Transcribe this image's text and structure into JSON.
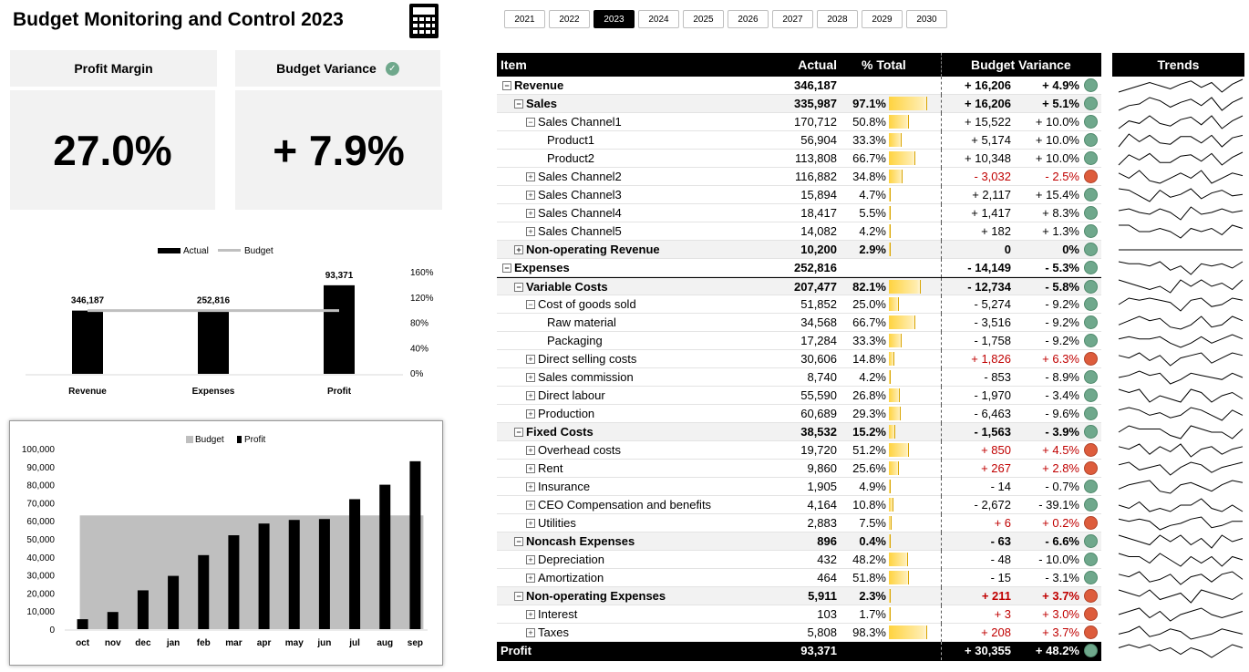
{
  "title": "Budget Monitoring and Control 2023",
  "icons": {
    "calculator": "calculator-icon",
    "check": "check-circle-icon"
  },
  "kpis": [
    {
      "label": "Profit Margin",
      "value": "27.0%"
    },
    {
      "label": "Budget Variance",
      "value": "+ 7.9%"
    }
  ],
  "years": [
    "2021",
    "2022",
    "2023",
    "2024",
    "2025",
    "2026",
    "2027",
    "2028",
    "2029",
    "2030"
  ],
  "selected_year": "2023",
  "colors": {
    "good": "#6fa88c",
    "bad": "#dd5c3c",
    "header": "#000000",
    "shade": "#f2f2f2",
    "bar": "#ffd33f",
    "budget_area": "#bfbfbf"
  },
  "table": {
    "headers": {
      "item": "Item",
      "actual": "Actual",
      "pct": "% Total",
      "variance": "Budget Variance",
      "trends": "Trends"
    },
    "rows": [
      {
        "label": "Revenue",
        "level": 0,
        "toggle": "minus",
        "actual": "346,187",
        "pct": "",
        "share": 0,
        "var": "+ 16,206",
        "vpct": "+ 4.9%",
        "status": "good",
        "bold": true,
        "shade": false,
        "top": false
      },
      {
        "label": "Sales",
        "level": 1,
        "toggle": "minus",
        "actual": "335,987",
        "pct": "97.1%",
        "share": 0.971,
        "var": "+ 16,206",
        "vpct": "+ 5.1%",
        "status": "good",
        "bold": true,
        "shade": true,
        "top": false
      },
      {
        "label": "Sales Channel1",
        "level": 2,
        "toggle": "minus",
        "actual": "170,712",
        "pct": "50.8%",
        "share": 0.508,
        "var": "+ 15,522",
        "vpct": "+ 10.0%",
        "status": "good",
        "bold": false,
        "shade": false,
        "top": false
      },
      {
        "label": "Product1",
        "level": 3,
        "toggle": "",
        "actual": "56,904",
        "pct": "33.3%",
        "share": 0.333,
        "var": "+ 5,174",
        "vpct": "+ 10.0%",
        "status": "good",
        "bold": false,
        "shade": false,
        "top": false
      },
      {
        "label": "Product2",
        "level": 3,
        "toggle": "",
        "actual": "113,808",
        "pct": "66.7%",
        "share": 0.667,
        "var": "+ 10,348",
        "vpct": "+ 10.0%",
        "status": "good",
        "bold": false,
        "shade": false,
        "top": false
      },
      {
        "label": "Sales Channel2",
        "level": 2,
        "toggle": "plus",
        "actual": "116,882",
        "pct": "34.8%",
        "share": 0.348,
        "var": "- 3,032",
        "vpct": "- 2.5%",
        "status": "bad",
        "bold": false,
        "shade": false,
        "top": false
      },
      {
        "label": "Sales Channel3",
        "level": 2,
        "toggle": "plus",
        "actual": "15,894",
        "pct": "4.7%",
        "share": 0.047,
        "var": "+ 2,117",
        "vpct": "+ 15.4%",
        "status": "good",
        "bold": false,
        "shade": false,
        "top": false
      },
      {
        "label": "Sales Channel4",
        "level": 2,
        "toggle": "plus",
        "actual": "18,417",
        "pct": "5.5%",
        "share": 0.055,
        "var": "+ 1,417",
        "vpct": "+ 8.3%",
        "status": "good",
        "bold": false,
        "shade": false,
        "top": false
      },
      {
        "label": "Sales Channel5",
        "level": 2,
        "toggle": "plus",
        "actual": "14,082",
        "pct": "4.2%",
        "share": 0.042,
        "var": "+ 182",
        "vpct": "+ 1.3%",
        "status": "good",
        "bold": false,
        "shade": false,
        "top": false
      },
      {
        "label": "Non-operating Revenue",
        "level": 1,
        "toggle": "plus",
        "actual": "10,200",
        "pct": "2.9%",
        "share": 0.029,
        "var": "0",
        "vpct": "0%",
        "status": "good",
        "bold": true,
        "shade": true,
        "top": false
      },
      {
        "label": "Expenses",
        "level": 0,
        "toggle": "minus",
        "actual": "252,816",
        "pct": "",
        "share": 0,
        "var": "- 14,149",
        "vpct": "- 5.3%",
        "status": "good",
        "bold": true,
        "shade": false,
        "top": false
      },
      {
        "label": "Variable Costs",
        "level": 1,
        "toggle": "minus",
        "actual": "207,477",
        "pct": "82.1%",
        "share": 0.821,
        "var": "- 12,734",
        "vpct": "- 5.8%",
        "status": "good",
        "bold": true,
        "shade": true,
        "top": true
      },
      {
        "label": "Cost of goods sold",
        "level": 2,
        "toggle": "minus",
        "actual": "51,852",
        "pct": "25.0%",
        "share": 0.25,
        "var": "- 5,274",
        "vpct": "- 9.2%",
        "status": "good",
        "bold": false,
        "shade": false,
        "top": false
      },
      {
        "label": "Raw material",
        "level": 3,
        "toggle": "",
        "actual": "34,568",
        "pct": "66.7%",
        "share": 0.667,
        "var": "- 3,516",
        "vpct": "- 9.2%",
        "status": "good",
        "bold": false,
        "shade": false,
        "top": false
      },
      {
        "label": "Packaging",
        "level": 3,
        "toggle": "",
        "actual": "17,284",
        "pct": "33.3%",
        "share": 0.333,
        "var": "- 1,758",
        "vpct": "- 9.2%",
        "status": "good",
        "bold": false,
        "shade": false,
        "top": false
      },
      {
        "label": "Direct selling costs",
        "level": 2,
        "toggle": "plus",
        "actual": "30,606",
        "pct": "14.8%",
        "share": 0.148,
        "var": "+ 1,826",
        "vpct": "+ 6.3%",
        "status": "bad",
        "bold": false,
        "shade": false,
        "top": false
      },
      {
        "label": "Sales commission",
        "level": 2,
        "toggle": "plus",
        "actual": "8,740",
        "pct": "4.2%",
        "share": 0.042,
        "var": "- 853",
        "vpct": "- 8.9%",
        "status": "good",
        "bold": false,
        "shade": false,
        "top": false
      },
      {
        "label": "Direct labour",
        "level": 2,
        "toggle": "plus",
        "actual": "55,590",
        "pct": "26.8%",
        "share": 0.268,
        "var": "- 1,970",
        "vpct": "- 3.4%",
        "status": "good",
        "bold": false,
        "shade": false,
        "top": false
      },
      {
        "label": "Production",
        "level": 2,
        "toggle": "plus",
        "actual": "60,689",
        "pct": "29.3%",
        "share": 0.293,
        "var": "- 6,463",
        "vpct": "- 9.6%",
        "status": "good",
        "bold": false,
        "shade": false,
        "top": false
      },
      {
        "label": "Fixed Costs",
        "level": 1,
        "toggle": "minus",
        "actual": "38,532",
        "pct": "15.2%",
        "share": 0.152,
        "var": "- 1,563",
        "vpct": "- 3.9%",
        "status": "good",
        "bold": true,
        "shade": true,
        "top": false
      },
      {
        "label": "Overhead costs",
        "level": 2,
        "toggle": "plus",
        "actual": "19,720",
        "pct": "51.2%",
        "share": 0.512,
        "var": "+ 850",
        "vpct": "+ 4.5%",
        "status": "bad",
        "bold": false,
        "shade": false,
        "top": false
      },
      {
        "label": "Rent",
        "level": 2,
        "toggle": "plus",
        "actual": "9,860",
        "pct": "25.6%",
        "share": 0.256,
        "var": "+ 267",
        "vpct": "+ 2.8%",
        "status": "bad",
        "bold": false,
        "shade": false,
        "top": false
      },
      {
        "label": "Insurance",
        "level": 2,
        "toggle": "plus",
        "actual": "1,905",
        "pct": "4.9%",
        "share": 0.049,
        "var": "- 14",
        "vpct": "- 0.7%",
        "status": "good",
        "bold": false,
        "shade": false,
        "top": false
      },
      {
        "label": "CEO Compensation and benefits",
        "level": 2,
        "toggle": "plus",
        "actual": "4,164",
        "pct": "10.8%",
        "share": 0.108,
        "var": "- 2,672",
        "vpct": "- 39.1%",
        "status": "good",
        "bold": false,
        "shade": false,
        "top": false
      },
      {
        "label": "Utilities",
        "level": 2,
        "toggle": "plus",
        "actual": "2,883",
        "pct": "7.5%",
        "share": 0.075,
        "var": "+ 6",
        "vpct": "+ 0.2%",
        "status": "bad",
        "bold": false,
        "shade": false,
        "top": false
      },
      {
        "label": "Noncash Expenses",
        "level": 1,
        "toggle": "minus",
        "actual": "896",
        "pct": "0.4%",
        "share": 0.004,
        "var": "- 63",
        "vpct": "- 6.6%",
        "status": "good",
        "bold": true,
        "shade": true,
        "top": false
      },
      {
        "label": "Depreciation",
        "level": 2,
        "toggle": "plus",
        "actual": "432",
        "pct": "48.2%",
        "share": 0.482,
        "var": "- 48",
        "vpct": "- 10.0%",
        "status": "good",
        "bold": false,
        "shade": false,
        "top": false
      },
      {
        "label": "Amortization",
        "level": 2,
        "toggle": "plus",
        "actual": "464",
        "pct": "51.8%",
        "share": 0.518,
        "var": "- 15",
        "vpct": "- 3.1%",
        "status": "good",
        "bold": false,
        "shade": false,
        "top": false
      },
      {
        "label": "Non-operating Expenses",
        "level": 1,
        "toggle": "minus",
        "actual": "5,911",
        "pct": "2.3%",
        "share": 0.023,
        "var": "+ 211",
        "vpct": "+ 3.7%",
        "status": "bad",
        "bold": true,
        "shade": true,
        "top": false
      },
      {
        "label": "Interest",
        "level": 2,
        "toggle": "plus",
        "actual": "103",
        "pct": "1.7%",
        "share": 0.017,
        "var": "+ 3",
        "vpct": "+ 3.0%",
        "status": "bad",
        "bold": false,
        "shade": false,
        "top": false
      },
      {
        "label": "Taxes",
        "level": 2,
        "toggle": "plus",
        "actual": "5,808",
        "pct": "98.3%",
        "share": 0.983,
        "var": "+ 208",
        "vpct": "+ 3.7%",
        "status": "bad",
        "bold": false,
        "shade": false,
        "top": false
      }
    ],
    "profit": {
      "label": "Profit",
      "actual": "93,371",
      "var": "+ 30,355",
      "vpct": "+ 48.2%",
      "status": "good"
    }
  },
  "chart_data": [
    {
      "type": "bar",
      "title": "",
      "legend": [
        "Actual",
        "Budget"
      ],
      "legend_position": "top",
      "categories": [
        "Revenue",
        "Expenses",
        "Profit"
      ],
      "values": [
        346187,
        252816,
        93371
      ],
      "data_labels": [
        "346,187",
        "252,816",
        "93,371"
      ],
      "achievement_pct": [
        100,
        100,
        140
      ],
      "budget_line_pct": 100,
      "secondary_axis_ticks": [
        "160%",
        "120%",
        "80%",
        "40%",
        "0%"
      ],
      "secondary_ylim": [
        0,
        160
      ]
    },
    {
      "type": "bar",
      "title": "",
      "legend": [
        "Budget",
        "Profit"
      ],
      "legend_position": "top",
      "categories": [
        "oct",
        "nov",
        "dec",
        "jan",
        "feb",
        "mar",
        "apr",
        "may",
        "jun",
        "jul",
        "aug",
        "sep"
      ],
      "series": [
        {
          "name": "Profit",
          "values": [
            5500,
            9500,
            21500,
            29500,
            41000,
            52000,
            58500,
            60500,
            61000,
            72000,
            80000,
            93000
          ]
        },
        {
          "name": "Budget",
          "values": [
            63000,
            63000,
            63000,
            63000,
            63000,
            63000,
            63000,
            63000,
            63000,
            63000,
            63000,
            63000
          ]
        }
      ],
      "y_ticks": [
        "100,000",
        "90,000",
        "80,000",
        "70,000",
        "60,000",
        "50,000",
        "40,000",
        "30,000",
        "20,000",
        "10,000",
        "0"
      ],
      "ylim": [
        0,
        100000
      ],
      "grid": false
    }
  ],
  "trends": [
    [
      4,
      6,
      8,
      10,
      8,
      6,
      9,
      11,
      7,
      10,
      4,
      9,
      12
    ],
    [
      4,
      7,
      8,
      12,
      10,
      6,
      9,
      11,
      7,
      12,
      4,
      9,
      12
    ],
    [
      4,
      10,
      8,
      14,
      8,
      6,
      11,
      13,
      7,
      14,
      4,
      10,
      14
    ],
    [
      4,
      14,
      8,
      13,
      7,
      6,
      12,
      12,
      7,
      13,
      4,
      11,
      13
    ],
    [
      4,
      12,
      8,
      13,
      6,
      6,
      11,
      12,
      7,
      13,
      4,
      10,
      14
    ],
    [
      12,
      10,
      13,
      9,
      8,
      10,
      12,
      10,
      13,
      8,
      10,
      12,
      11
    ],
    [
      13,
      12,
      8,
      4,
      12,
      7,
      9,
      13,
      6,
      10,
      12,
      8,
      9
    ],
    [
      11,
      12,
      10,
      9,
      12,
      10,
      6,
      13,
      9,
      10,
      12,
      10,
      11
    ],
    [
      12,
      12,
      10,
      10,
      11,
      10,
      8,
      11,
      10,
      11,
      9,
      12,
      11
    ],
    [
      10,
      10,
      10,
      10,
      10,
      10,
      10,
      10,
      10,
      10,
      10,
      10,
      10
    ],
    [
      12,
      11,
      11,
      10,
      12,
      8,
      10,
      6,
      11,
      10,
      11,
      9,
      12
    ],
    [
      12,
      11,
      10,
      9,
      10,
      8,
      12,
      10,
      12,
      10,
      11,
      9,
      12
    ],
    [
      10,
      13,
      12,
      13,
      12,
      11,
      7,
      12,
      13,
      9,
      10,
      13,
      12
    ],
    [
      10,
      12,
      14,
      12,
      13,
      9,
      8,
      10,
      14,
      9,
      10,
      14,
      12
    ],
    [
      12,
      13,
      12,
      12,
      13,
      10,
      8,
      10,
      13,
      10,
      12,
      14,
      12
    ],
    [
      12,
      11,
      13,
      10,
      12,
      8,
      11,
      12,
      13,
      9,
      11,
      13,
      12
    ],
    [
      11,
      12,
      14,
      12,
      13,
      8,
      10,
      13,
      12,
      11,
      10,
      13,
      11
    ],
    [
      13,
      12,
      13,
      9,
      11,
      10,
      9,
      13,
      12,
      9,
      11,
      12,
      10
    ],
    [
      12,
      13,
      12,
      10,
      11,
      9,
      10,
      13,
      12,
      10,
      8,
      12,
      10
    ],
    [
      11,
      13,
      12,
      12,
      12,
      10,
      9,
      13,
      12,
      11,
      11,
      9,
      12
    ],
    [
      12,
      11,
      13,
      9,
      12,
      10,
      13,
      8,
      11,
      12,
      9,
      11,
      12
    ],
    [
      12,
      13,
      10,
      11,
      12,
      8,
      11,
      13,
      12,
      9,
      11,
      12,
      13
    ],
    [
      10,
      12,
      13,
      14,
      9,
      8,
      12,
      13,
      11,
      9,
      12,
      14,
      13
    ],
    [
      12,
      11,
      13,
      10,
      11,
      10,
      12,
      12,
      14,
      11,
      10,
      12,
      10
    ],
    [
      13,
      12,
      13,
      12,
      8,
      10,
      11,
      13,
      14,
      9,
      10,
      12,
      12
    ],
    [
      12,
      11,
      10,
      9,
      12,
      10,
      12,
      9,
      11,
      8,
      12,
      10,
      11
    ],
    [
      13,
      12,
      12,
      10,
      13,
      11,
      9,
      12,
      10,
      12,
      9,
      12,
      11
    ],
    [
      12,
      11,
      13,
      9,
      10,
      12,
      8,
      11,
      12,
      9,
      12,
      13,
      10
    ],
    [
      12,
      11,
      10,
      12,
      9,
      10,
      11,
      8,
      12,
      11,
      10,
      9,
      11
    ],
    [
      11,
      12,
      13,
      10,
      12,
      9,
      11,
      12,
      13,
      11,
      10,
      11,
      12
    ],
    [
      11,
      12,
      14,
      10,
      11,
      13,
      12,
      9,
      10,
      11,
      13,
      12,
      11
    ],
    [
      12,
      13,
      12,
      13,
      11,
      12,
      10,
      12,
      11,
      9,
      11,
      13,
      12
    ]
  ]
}
